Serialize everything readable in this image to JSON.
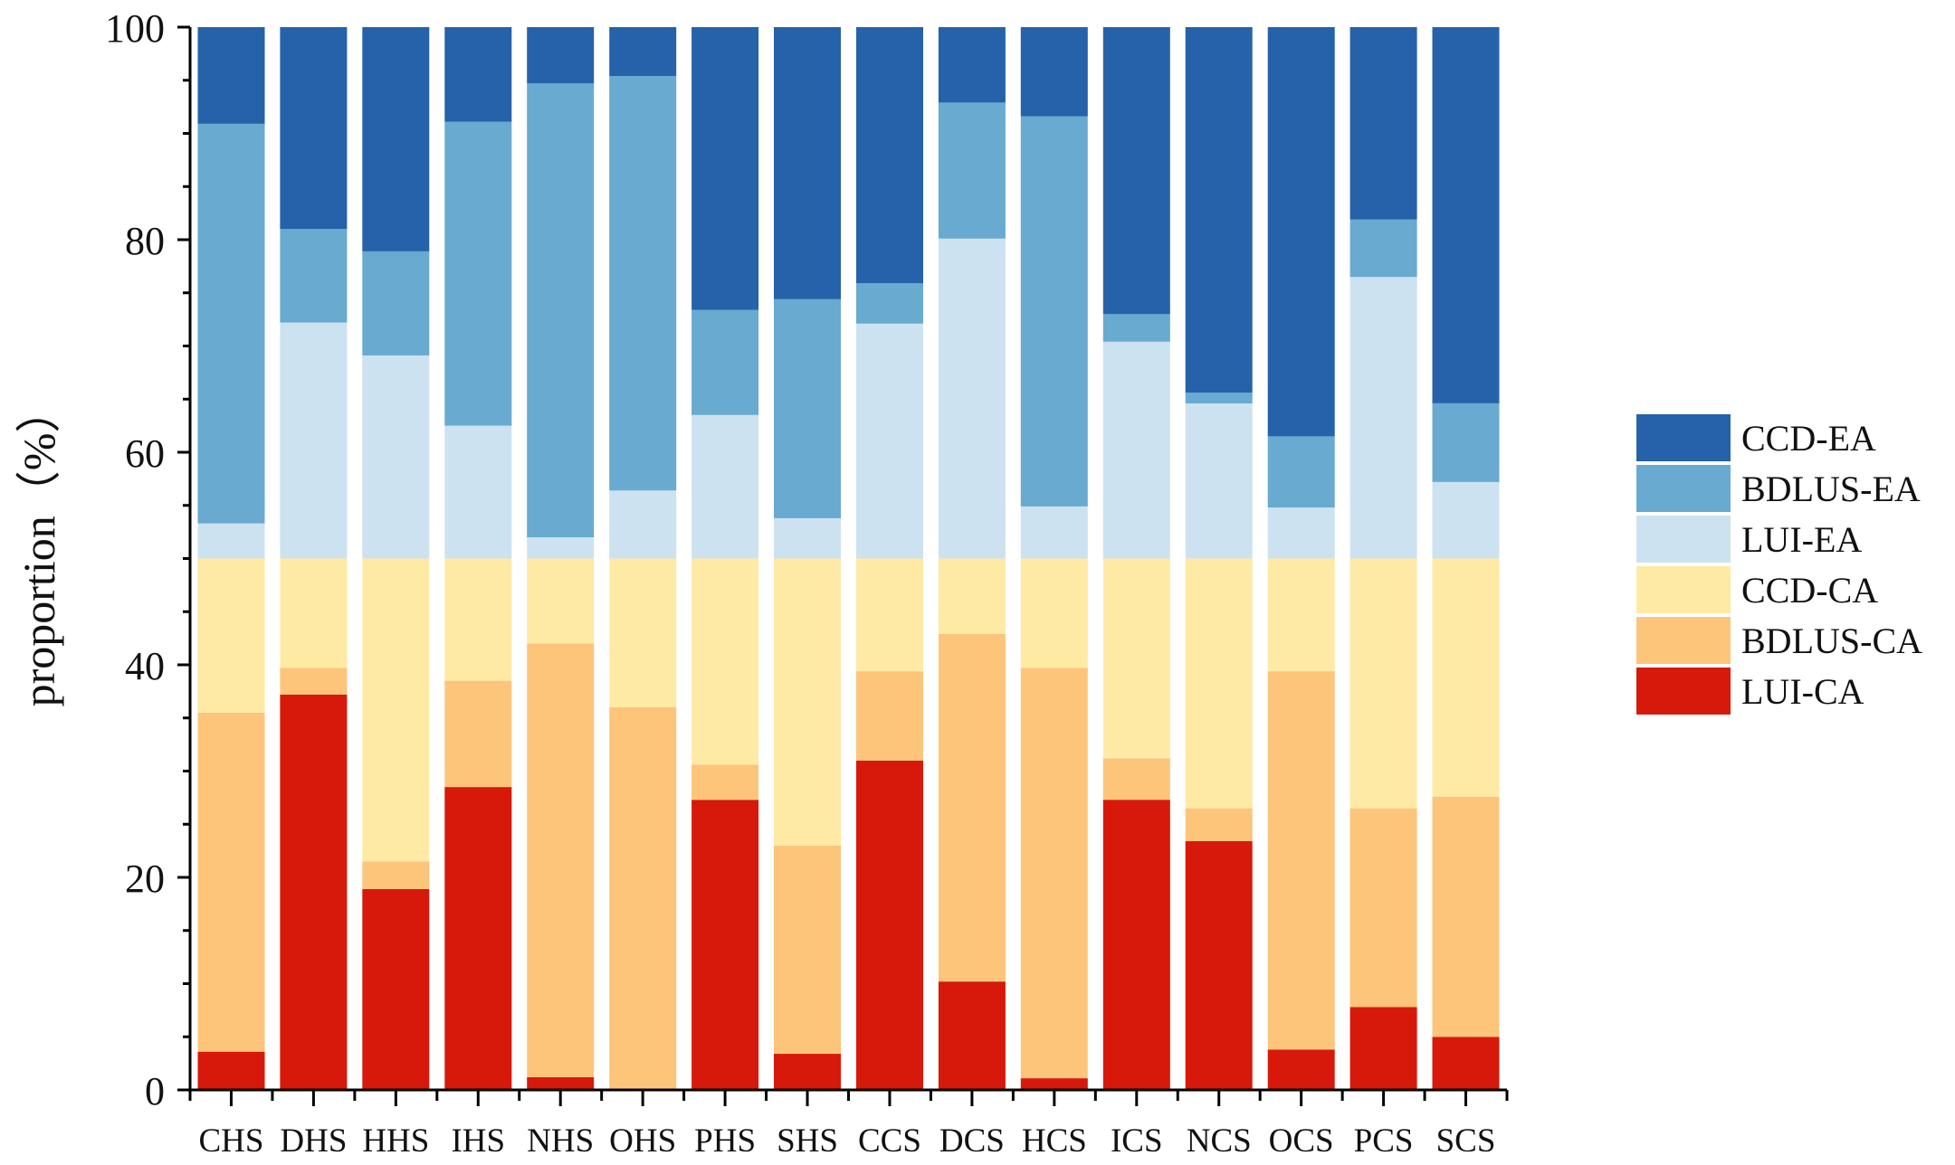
{
  "chart_data": {
    "type": "bar",
    "stacked": true,
    "title": "",
    "xlabel": "",
    "ylabel": "proportion（%）",
    "ylim": [
      0,
      100
    ],
    "yticks": [
      "0",
      "20",
      "40",
      "60",
      "80",
      "100"
    ],
    "grid": false,
    "legend_position": "right",
    "categories": [
      "CHS",
      "DHS",
      "HHS",
      "IHS",
      "NHS",
      "OHS",
      "PHS",
      "SHS",
      "CCS",
      "DCS",
      "HCS",
      "ICS",
      "NCS",
      "OCS",
      "PCS",
      "SCS"
    ],
    "series": [
      {
        "name": "LUI-CA",
        "color": "#d7190b",
        "values": [
          3.6,
          37.2,
          18.9,
          28.5,
          1.2,
          0.1,
          27.3,
          3.4,
          31.0,
          10.2,
          1.1,
          27.3,
          23.4,
          3.8,
          7.8,
          5.0
        ]
      },
      {
        "name": "BDLUS-CA",
        "color": "#fdc57a",
        "values": [
          31.9,
          2.5,
          2.6,
          10.0,
          40.8,
          35.9,
          3.3,
          19.6,
          8.4,
          32.7,
          38.6,
          3.9,
          3.1,
          35.6,
          18.7,
          22.6
        ]
      },
      {
        "name": "CCD-CA",
        "color": "#feeaa5",
        "values": [
          14.5,
          10.3,
          28.5,
          11.5,
          8.0,
          14.0,
          19.4,
          27.0,
          10.6,
          7.1,
          10.3,
          18.8,
          23.5,
          10.6,
          23.5,
          22.4
        ]
      },
      {
        "name": "LUI-EA",
        "color": "#cde2f0",
        "values": [
          3.3,
          22.2,
          19.1,
          12.5,
          2.0,
          6.4,
          13.5,
          3.8,
          22.1,
          30.1,
          4.9,
          20.4,
          14.6,
          4.8,
          26.5,
          7.2
        ]
      },
      {
        "name": "BDLUS-EA",
        "color": "#68aad0",
        "values": [
          37.6,
          8.8,
          9.8,
          28.6,
          42.7,
          39.0,
          9.9,
          20.6,
          3.8,
          12.8,
          36.7,
          2.6,
          1.0,
          6.7,
          5.4,
          7.4
        ]
      },
      {
        "name": "CCD-EA",
        "color": "#2562a9",
        "values": [
          9.1,
          19.0,
          21.1,
          8.9,
          5.3,
          4.6,
          26.6,
          25.6,
          24.1,
          7.1,
          8.4,
          27.0,
          34.4,
          38.5,
          18.1,
          35.4
        ]
      }
    ],
    "legend_order": [
      "CCD-EA",
      "BDLUS-EA",
      "LUI-EA",
      "CCD-CA",
      "BDLUS-CA",
      "LUI-CA"
    ]
  }
}
